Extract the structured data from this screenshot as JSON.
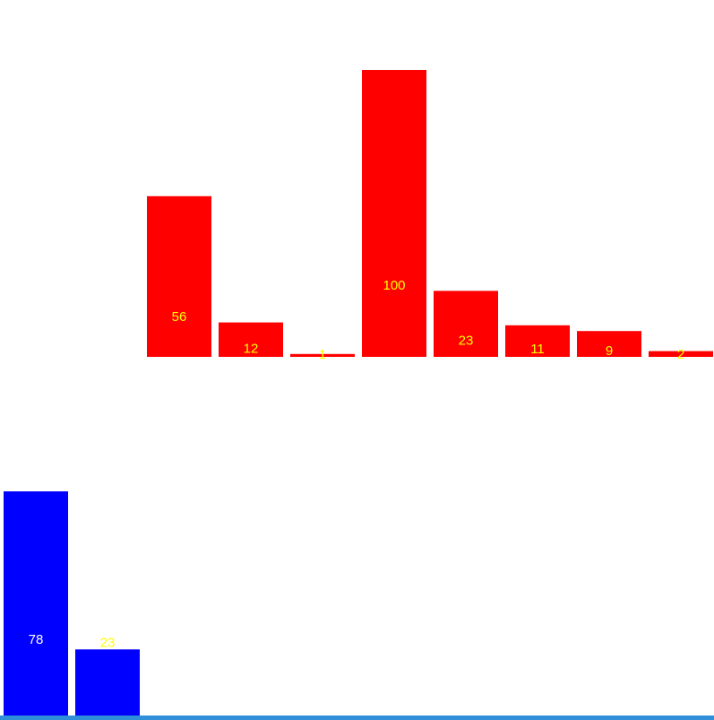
{
  "chart_data": [
    {
      "type": "bar",
      "values": [
        56,
        12,
        1,
        100,
        23,
        11,
        9,
        2
      ],
      "labels": [
        "56",
        "12",
        "1",
        "100",
        "23",
        "11",
        "9",
        "2"
      ],
      "ylim": [
        0,
        100
      ],
      "bar_color": "#ff0000",
      "label_color": "#ffff00"
    },
    {
      "type": "bar",
      "values": [
        78,
        23
      ],
      "labels": [
        "78",
        "23"
      ],
      "ylim": [
        0,
        78
      ],
      "bar_color": "#0000ff",
      "label_colors": [
        "#ffffff",
        "#ffff00"
      ]
    }
  ]
}
